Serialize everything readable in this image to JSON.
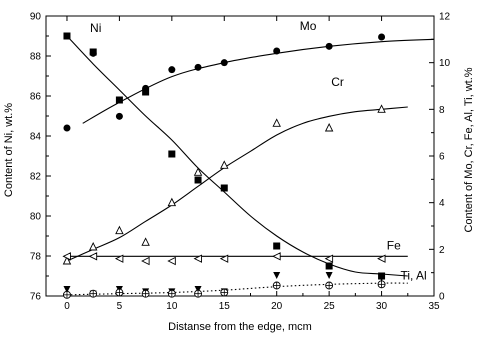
{
  "chart_data": {
    "type": "scatter",
    "title": "",
    "xlabel": "Distanse from the edge, mcm",
    "ylabel_left": "Content of Ni, wt.%",
    "ylabel_right": "Content of Mo, Cr, Fe, Al, Ti, wt.%",
    "xlim": [
      -2,
      35
    ],
    "ylim_left": [
      76,
      90
    ],
    "ylim_right": [
      0,
      12
    ],
    "xticks": [
      0,
      5,
      10,
      15,
      20,
      25,
      30,
      35
    ],
    "yticks_left": [
      76,
      78,
      80,
      82,
      84,
      86,
      88,
      90
    ],
    "yticks_right": [
      0,
      2,
      4,
      6,
      8,
      10,
      12
    ],
    "grid": false,
    "legend": "none",
    "series": [
      {
        "name": "Ni",
        "axis": "left",
        "marker": "square-filled",
        "x": [
          0,
          2.5,
          5,
          7.5,
          10,
          12.5,
          15,
          20,
          25,
          30
        ],
        "y": [
          89.0,
          88.2,
          85.8,
          86.2,
          83.1,
          81.8,
          81.4,
          78.5,
          77.5,
          77.0
        ],
        "fit_x": [
          0,
          2.5,
          5,
          7.5,
          10,
          12.5,
          15,
          17.5,
          20,
          22.5,
          25,
          27.5,
          30,
          32.5
        ],
        "fit_y": [
          89.0,
          87.6,
          86.3,
          85.0,
          83.8,
          82.4,
          81.2,
          80.0,
          79.0,
          78.2,
          77.6,
          77.2,
          77.1,
          77.0
        ]
      },
      {
        "name": "Mo",
        "axis": "right",
        "marker": "circle-filled",
        "x": [
          0,
          2.5,
          5,
          7.5,
          10,
          12.5,
          15,
          20,
          25,
          30
        ],
        "y": [
          7.2,
          10.4,
          7.7,
          8.9,
          9.7,
          9.8,
          10.0,
          10.5,
          10.7,
          11.1
        ],
        "fit_x": [
          1.5,
          5,
          10,
          15,
          20,
          25,
          30,
          35
        ],
        "fit_y": [
          7.4,
          8.3,
          9.4,
          10.0,
          10.4,
          10.7,
          10.9,
          11.0
        ]
      },
      {
        "name": "Cr",
        "axis": "right",
        "marker": "triangle-open",
        "x": [
          0,
          2.5,
          5,
          7.5,
          10,
          12.5,
          15,
          20,
          25,
          30
        ],
        "y": [
          1.5,
          2.1,
          2.8,
          2.3,
          4.0,
          5.3,
          5.6,
          7.4,
          7.2,
          8.0
        ],
        "fit_x": [
          0,
          2.5,
          5,
          7.5,
          10,
          12.5,
          15,
          17.5,
          20,
          22.5,
          25,
          27.5,
          30,
          32.5
        ],
        "fit_y": [
          1.5,
          2.0,
          2.5,
          3.2,
          3.9,
          4.7,
          5.5,
          6.2,
          6.9,
          7.4,
          7.7,
          7.9,
          8.0,
          8.1
        ]
      },
      {
        "name": "Fe",
        "axis": "right",
        "marker": "triangle-left-open",
        "x": [
          0,
          2.5,
          5,
          7.5,
          10,
          12.5,
          15,
          20,
          25,
          30
        ],
        "y": [
          1.7,
          1.7,
          1.6,
          1.5,
          1.5,
          1.6,
          1.6,
          1.7,
          1.6,
          1.6
        ],
        "fit_x": [
          0,
          32.5
        ],
        "fit_y": [
          1.7,
          1.7
        ]
      },
      {
        "name": "Ti, Al",
        "axis": "right",
        "marker": "triangle-down-filled",
        "x": [
          0,
          2.5,
          5,
          7.5,
          10,
          12.5,
          15,
          20,
          25,
          30
        ],
        "y": [
          0.3,
          0.1,
          0.3,
          0.2,
          0.2,
          0.3,
          0.2,
          0.9,
          0.9,
          0.8
        ],
        "fit_x": [
          0,
          32.5
        ],
        "fit_y": [
          0,
          0
        ]
      },
      {
        "name": "",
        "axis": "right",
        "marker": "circle-cross-open",
        "x": [
          0,
          2.5,
          5,
          7.5,
          10,
          12.5,
          15,
          20,
          25,
          30
        ],
        "y": [
          0.05,
          0.1,
          0.15,
          0.1,
          0.1,
          0.1,
          0.15,
          0.45,
          0.45,
          0.5
        ],
        "fit_x": [
          0,
          5,
          10,
          15,
          20,
          25,
          30,
          32.5
        ],
        "fit_y": [
          0.05,
          0.1,
          0.15,
          0.25,
          0.4,
          0.5,
          0.55,
          0.55
        ],
        "fit_style": "dotted"
      }
    ],
    "annotations": [
      {
        "text": "Ni",
        "x": 2.2,
        "y": 89.2,
        "axis": "left"
      },
      {
        "text": "Mo",
        "x": 22.2,
        "y": 11.4,
        "axis": "right"
      },
      {
        "text": "Cr",
        "x": 25.2,
        "y": 9.0,
        "axis": "right"
      },
      {
        "text": "Fe",
        "x": 30.5,
        "y": 2.0,
        "axis": "right"
      },
      {
        "text": "Ti, Al",
        "x": 31.8,
        "y": 0.7,
        "axis": "right"
      }
    ]
  }
}
